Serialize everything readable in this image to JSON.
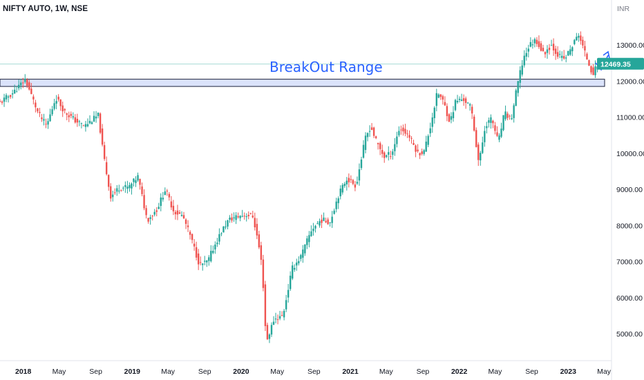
{
  "header": {
    "title": "NIFTY AUTO, 1W, NSE",
    "currency": "INR"
  },
  "colors": {
    "up": "#26a69a",
    "down": "#ef5350",
    "zone_fill": "#dbe3fb",
    "zone_border": "#1a1f3a",
    "annotation": "#2962ff",
    "price_line": "#26a69a",
    "axis_text": "#131722"
  },
  "annotation": {
    "label": "BreakOut Range",
    "arrow_icon": "up-right-arrow-icon"
  },
  "chart_data": {
    "type": "candlestick",
    "title": "NIFTY AUTO, 1W, NSE",
    "xlabel": "",
    "ylabel": "INR",
    "ylim": [
      4300,
      13900
    ],
    "grid": false,
    "last_price": "12469.35",
    "last_price_value": 12469.35,
    "breakout_zone": [
      11850,
      12050
    ],
    "y_ticks": [
      "13000.00",
      "12000.00",
      "11000.00",
      "10000.00",
      "9000.00",
      "8000.00",
      "7000.00",
      "6000.00",
      "5000.00"
    ],
    "y_tick_values": [
      13000,
      12000,
      11000,
      10000,
      9000,
      8000,
      7000,
      6000,
      5000
    ],
    "x_ticks": [
      {
        "label": "2018",
        "date": "2018-01-01"
      },
      {
        "label": "May",
        "date": "2018-05-01"
      },
      {
        "label": "Sep",
        "date": "2018-09-01"
      },
      {
        "label": "2019",
        "date": "2019-01-01"
      },
      {
        "label": "May",
        "date": "2019-05-01"
      },
      {
        "label": "Sep",
        "date": "2019-09-01"
      },
      {
        "label": "2020",
        "date": "2020-01-01"
      },
      {
        "label": "May",
        "date": "2020-05-01"
      },
      {
        "label": "Sep",
        "date": "2020-09-01"
      },
      {
        "label": "2021",
        "date": "2021-01-01"
      },
      {
        "label": "May",
        "date": "2021-05-01"
      },
      {
        "label": "Sep",
        "date": "2021-09-01"
      },
      {
        "label": "2022",
        "date": "2022-01-01"
      },
      {
        "label": "May",
        "date": "2022-05-01"
      },
      {
        "label": "Sep",
        "date": "2022-09-01"
      },
      {
        "label": "2023",
        "date": "2023-01-01"
      },
      {
        "label": "May",
        "date": "2023-05-01"
      }
    ],
    "series_path": [
      [
        "2017-10-15",
        11400
      ],
      [
        "2017-12-01",
        11700
      ],
      [
        "2018-01-08",
        12050
      ],
      [
        "2018-02-20",
        11100
      ],
      [
        "2018-03-20",
        10750
      ],
      [
        "2018-04-20",
        11550
      ],
      [
        "2018-05-20",
        11150
      ],
      [
        "2018-06-25",
        10900
      ],
      [
        "2018-07-25",
        10750
      ],
      [
        "2018-08-25",
        10950
      ],
      [
        "2018-09-10",
        11050
      ],
      [
        "2018-09-24",
        10100
      ],
      [
        "2018-10-20",
        8800
      ],
      [
        "2018-11-20",
        9050
      ],
      [
        "2018-12-20",
        9050
      ],
      [
        "2019-01-20",
        9350
      ],
      [
        "2019-02-20",
        8150
      ],
      [
        "2019-03-25",
        8450
      ],
      [
        "2019-04-22",
        9000
      ],
      [
        "2019-05-20",
        8400
      ],
      [
        "2019-06-20",
        8250
      ],
      [
        "2019-07-15",
        7700
      ],
      [
        "2019-08-15",
        6900
      ],
      [
        "2019-09-12",
        7000
      ],
      [
        "2019-09-26",
        7300
      ],
      [
        "2019-10-25",
        7800
      ],
      [
        "2019-11-20",
        8150
      ],
      [
        "2019-12-20",
        8250
      ],
      [
        "2020-01-20",
        8300
      ],
      [
        "2020-02-10",
        8250
      ],
      [
        "2020-02-28",
        7500
      ],
      [
        "2020-03-12",
        6800
      ],
      [
        "2020-03-25",
        4750
      ],
      [
        "2020-04-20",
        5400
      ],
      [
        "2020-05-20",
        5500
      ],
      [
        "2020-06-20",
        6800
      ],
      [
        "2020-07-20",
        7150
      ],
      [
        "2020-08-25",
        7900
      ],
      [
        "2020-09-25",
        8150
      ],
      [
        "2020-10-25",
        8100
      ],
      [
        "2020-11-20",
        8800
      ],
      [
        "2020-12-20",
        9300
      ],
      [
        "2021-01-20",
        9100
      ],
      [
        "2021-02-20",
        10400
      ],
      [
        "2021-03-10",
        10750
      ],
      [
        "2021-03-30",
        10300
      ],
      [
        "2021-04-25",
        9900
      ],
      [
        "2021-05-20",
        10000
      ],
      [
        "2021-06-15",
        10700
      ],
      [
        "2021-07-15",
        10500
      ],
      [
        "2021-08-15",
        10000
      ],
      [
        "2021-09-05",
        10050
      ],
      [
        "2021-09-25",
        10700
      ],
      [
        "2021-10-20",
        11700
      ],
      [
        "2021-11-10",
        11400
      ],
      [
        "2021-12-01",
        10850
      ],
      [
        "2021-12-20",
        11450
      ],
      [
        "2022-01-15",
        11500
      ],
      [
        "2022-02-10",
        11250
      ],
      [
        "2022-03-08",
        9700
      ],
      [
        "2022-03-30",
        10800
      ],
      [
        "2022-04-20",
        10950
      ],
      [
        "2022-05-12",
        10300
      ],
      [
        "2022-06-01",
        11100
      ],
      [
        "2022-06-25",
        10950
      ],
      [
        "2022-07-15",
        11900
      ],
      [
        "2022-08-05",
        12650
      ],
      [
        "2022-08-25",
        13000
      ],
      [
        "2022-09-15",
        13150
      ],
      [
        "2022-10-10",
        12750
      ],
      [
        "2022-11-05",
        13000
      ],
      [
        "2022-11-30",
        12700
      ],
      [
        "2022-12-20",
        12600
      ],
      [
        "2023-01-10",
        12900
      ],
      [
        "2023-02-05",
        13300
      ],
      [
        "2023-02-25",
        12800
      ],
      [
        "2023-03-15",
        12400
      ],
      [
        "2023-03-25",
        12200
      ],
      [
        "2023-04-10",
        12469
      ]
    ]
  }
}
